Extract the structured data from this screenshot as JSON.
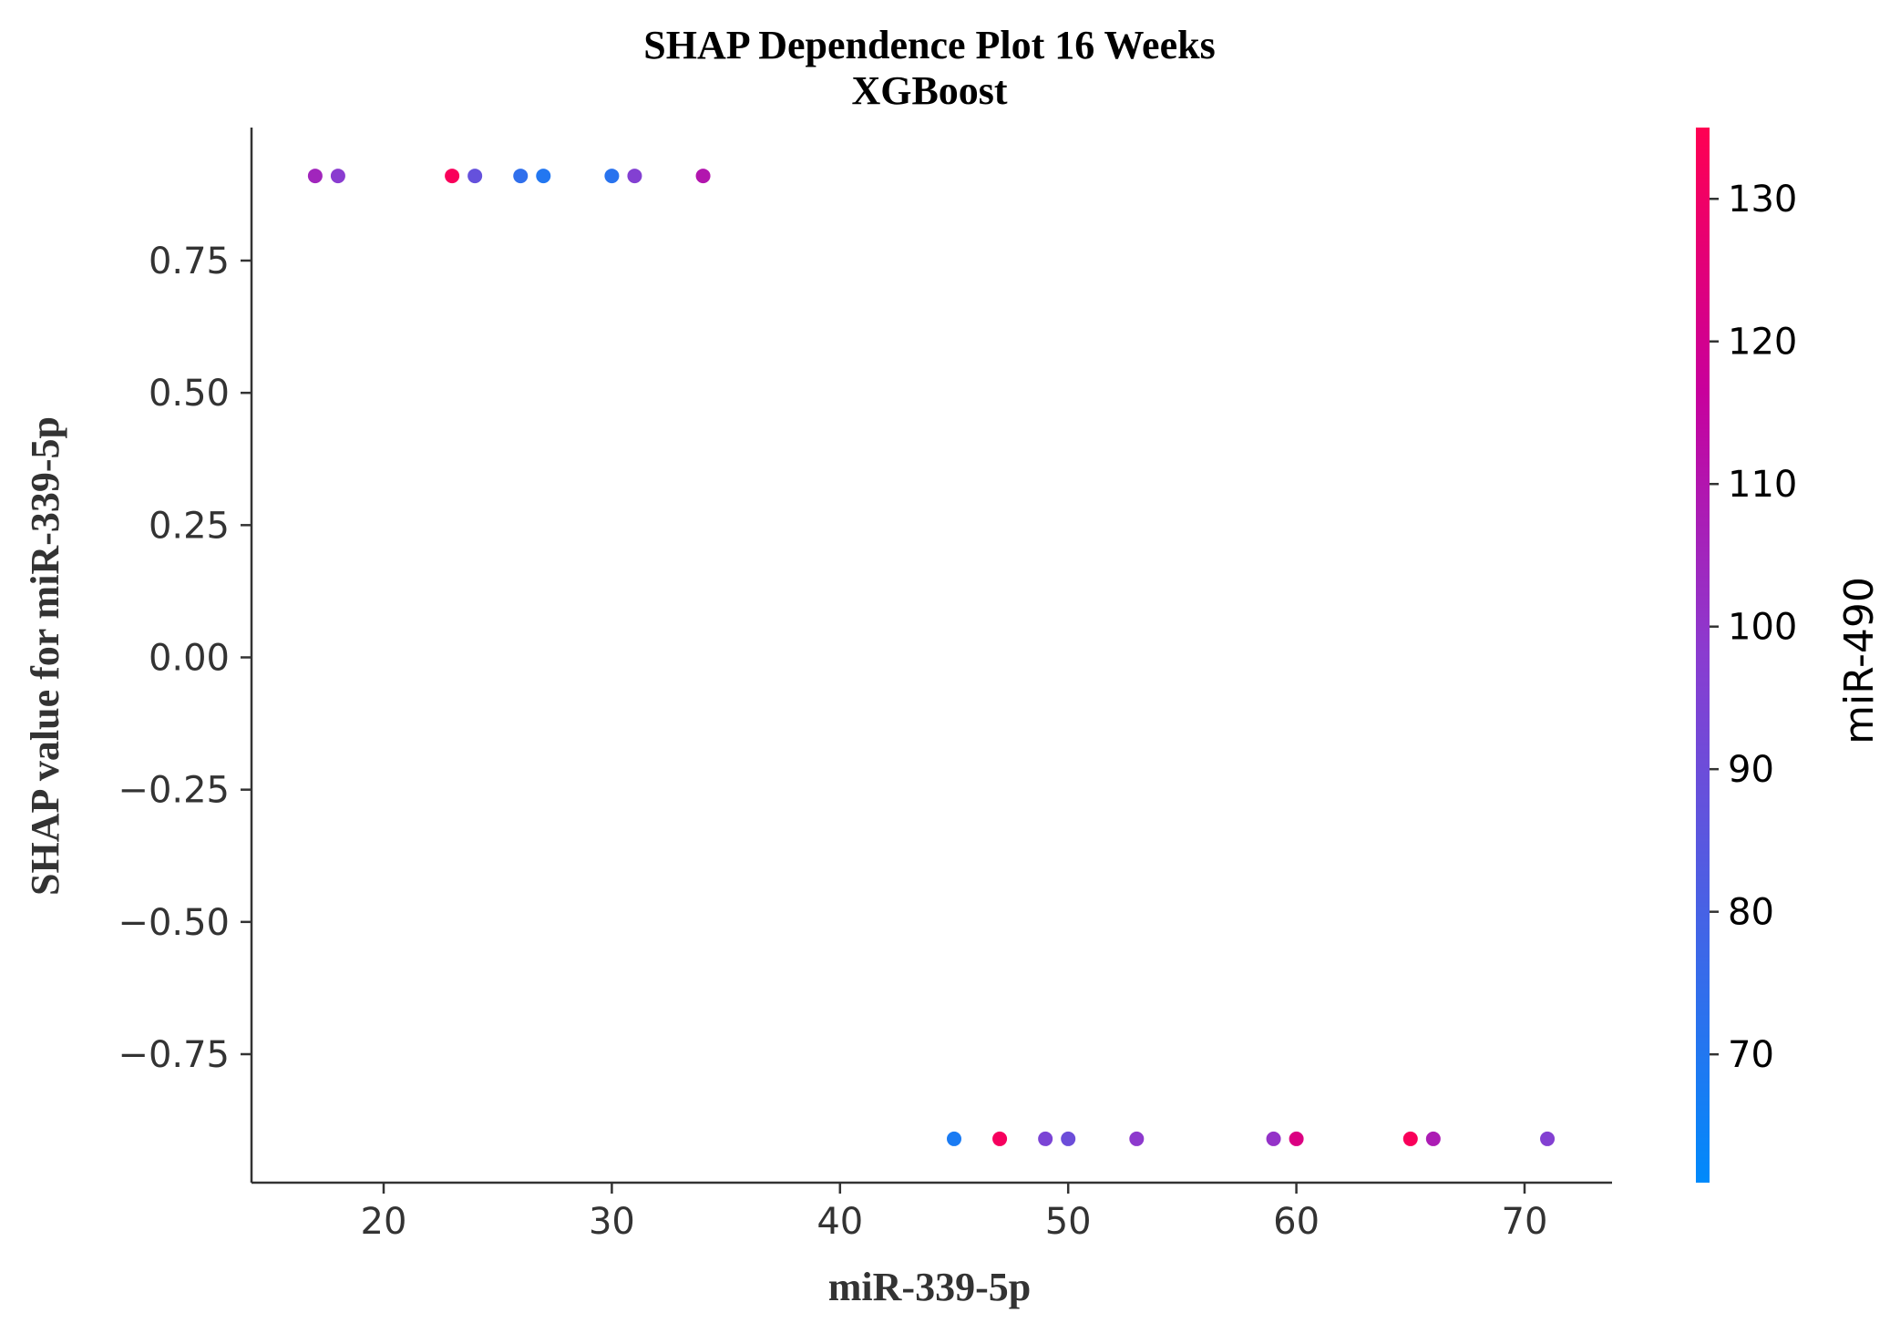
{
  "chart_data": {
    "type": "scatter",
    "title": "SHAP Dependence Plot 16 Weeks",
    "subtitle": "XGBoost",
    "xlabel": "miR-339-5p",
    "ylabel": "SHAP value for miR-339-5p",
    "xlim": [
      14.5,
      74
    ],
    "ylim": [
      -1.0,
      1.0
    ],
    "x_ticks": [
      20,
      30,
      40,
      50,
      60,
      70
    ],
    "x_tick_labels": [
      "20",
      "30",
      "40",
      "50",
      "60",
      "70"
    ],
    "y_ticks": [
      0.75,
      0.5,
      0.25,
      0.0,
      -0.25,
      -0.5,
      -0.75
    ],
    "y_tick_labels": [
      "0.75",
      "0.50",
      "0.25",
      "0.00",
      "−0.25",
      "−0.50",
      "−0.75"
    ],
    "colorbar": {
      "label": "miR-490",
      "range": [
        61,
        135
      ],
      "ticks": [
        70,
        80,
        90,
        100,
        110,
        120,
        130
      ],
      "tick_labels": [
        "70",
        "80",
        "90",
        "100",
        "110",
        "120",
        "130"
      ],
      "color_low": "#008afb",
      "color_high": "#ff0052"
    },
    "grid": false,
    "points": [
      {
        "x": 17,
        "y": 0.91,
        "c": 105
      },
      {
        "x": 18,
        "y": 0.91,
        "c": 98
      },
      {
        "x": 23,
        "y": 0.91,
        "c": 133
      },
      {
        "x": 24,
        "y": 0.91,
        "c": 88
      },
      {
        "x": 26,
        "y": 0.91,
        "c": 74
      },
      {
        "x": 27,
        "y": 0.91,
        "c": 70
      },
      {
        "x": 30,
        "y": 0.91,
        "c": 72
      },
      {
        "x": 31,
        "y": 0.91,
        "c": 96
      },
      {
        "x": 34,
        "y": 0.91,
        "c": 110
      },
      {
        "x": 45,
        "y": -0.91,
        "c": 68
      },
      {
        "x": 47,
        "y": -0.91,
        "c": 132
      },
      {
        "x": 49,
        "y": -0.91,
        "c": 94
      },
      {
        "x": 50,
        "y": -0.91,
        "c": 90
      },
      {
        "x": 53,
        "y": -0.91,
        "c": 99
      },
      {
        "x": 59,
        "y": -0.91,
        "c": 101
      },
      {
        "x": 60,
        "y": -0.91,
        "c": 123
      },
      {
        "x": 65,
        "y": -0.91,
        "c": 133
      },
      {
        "x": 66,
        "y": -0.91,
        "c": 108
      },
      {
        "x": 71,
        "y": -0.91,
        "c": 96
      }
    ]
  }
}
